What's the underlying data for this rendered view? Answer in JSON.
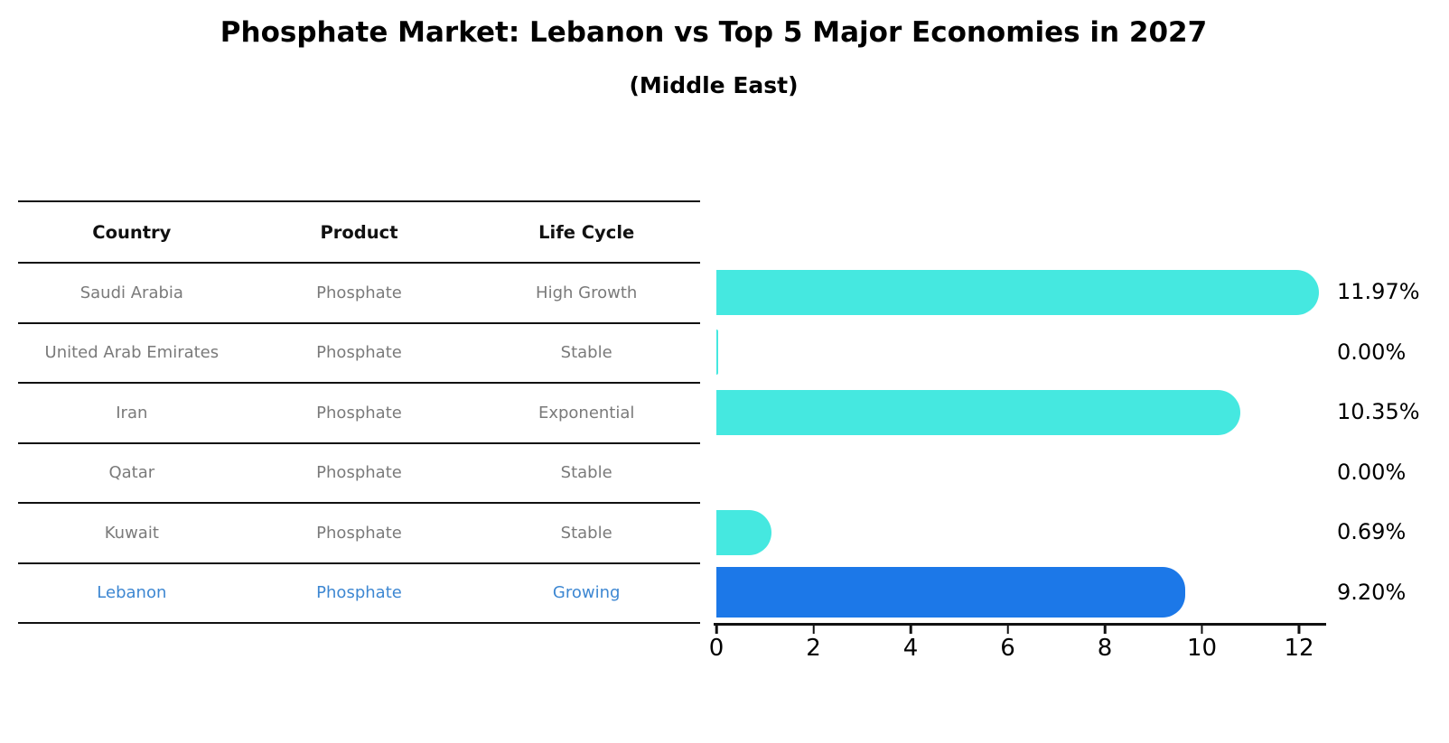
{
  "title": "Phosphate Market: Lebanon vs Top 5 Major Economies in 2027",
  "subtitle": "(Middle East)",
  "table": {
    "headers": [
      "Country",
      "Product",
      "Life Cycle"
    ],
    "rows": [
      {
        "country": "Saudi Arabia",
        "product": "Phosphate",
        "life_cycle": "High Growth"
      },
      {
        "country": "United Arab Emirates",
        "product": "Phosphate",
        "life_cycle": "Stable"
      },
      {
        "country": "Iran",
        "product": "Phosphate",
        "life_cycle": "Exponential"
      },
      {
        "country": "Qatar",
        "product": "Phosphate",
        "life_cycle": "Stable"
      },
      {
        "country": "Kuwait",
        "product": "Phosphate",
        "life_cycle": "Stable"
      },
      {
        "country": "Lebanon",
        "product": "Phosphate",
        "life_cycle": "Growing"
      }
    ],
    "highlight_row": 5
  },
  "chart_data": {
    "type": "bar",
    "orientation": "horizontal",
    "title": "Phosphate Market: Lebanon vs Top 5 Major Economies in 2027",
    "subtitle": "(Middle East)",
    "categories": [
      "Saudi Arabia",
      "United Arab Emirates",
      "Iran",
      "Qatar",
      "Kuwait",
      "Lebanon"
    ],
    "values": [
      11.97,
      0.0,
      10.35,
      0.0,
      0.69,
      9.2
    ],
    "value_labels": [
      "11.97%",
      "0.00%",
      "10.35%",
      "0.00%",
      "0.69%",
      "9.20%"
    ],
    "xlabel": "",
    "ylabel": "",
    "xticks": [
      "0",
      "2",
      "4",
      "6",
      "8",
      "10",
      "12"
    ],
    "xtick_values": [
      0,
      2,
      4,
      6,
      8,
      10,
      12
    ],
    "xlim": [
      0,
      12.56
    ],
    "grid": false,
    "legend": null,
    "bar_default_color": "#45E8E0",
    "bar_highlight_color": "#1C78E8",
    "highlight_index": 5
  },
  "colors": {
    "header_text": "#111111",
    "row_text": "#7a7a7a",
    "highlight_text": "#3D87D2",
    "axis": "#111111",
    "value_label_text": "#000000"
  }
}
